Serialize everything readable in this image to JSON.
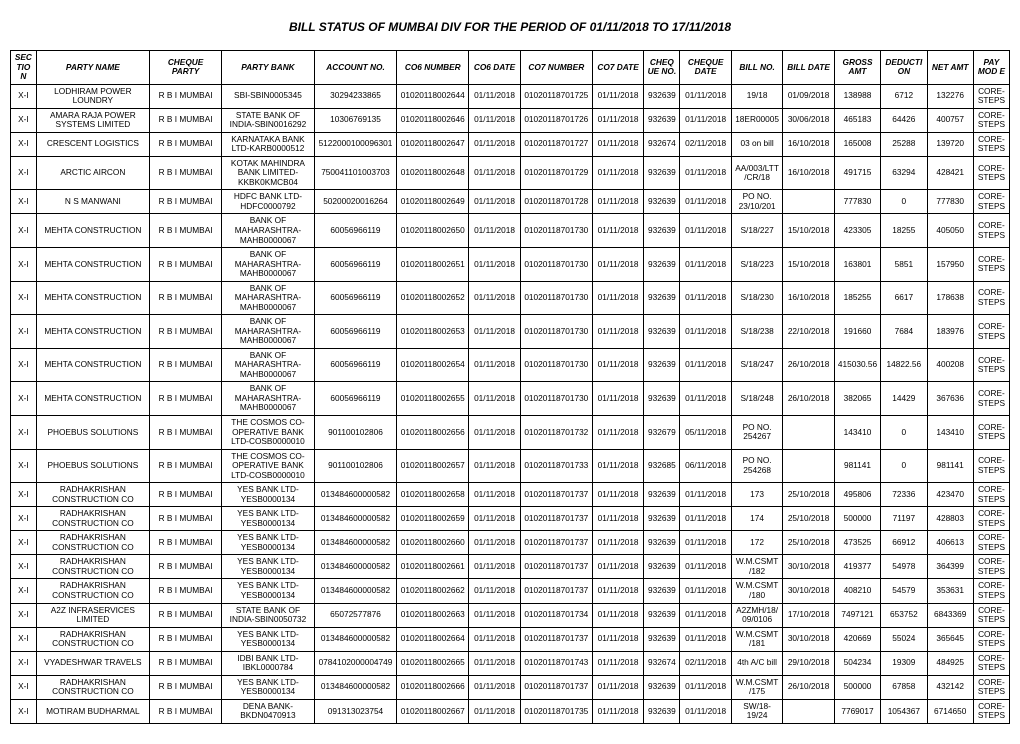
{
  "title": "BILL STATUS OF MUMBAI DIV FOR THE PERIOD OF 01/11/2018 TO 17/11/2018",
  "columns": [
    "SEC TIO N",
    "PARTY NAME",
    "CHEQUE PARTY",
    "PARTY BANK",
    "ACCOUNT NO.",
    "CO6 NUMBER",
    "CO6 DATE",
    "CO7 NUMBER",
    "CO7 DATE",
    "CHEQ UE NO.",
    "CHEQUE DATE",
    "BILL NO.",
    "BILL DATE",
    "GROSS AMT",
    "DEDUCTI ON",
    "NET AMT",
    "PAY MOD E"
  ],
  "rows": [
    [
      "X-I",
      "LODHIRAM POWER LOUNDRY",
      "R B I  MUMBAI",
      "SBI-SBIN0005345",
      "30294233865",
      "01020118002644",
      "01/11/2018",
      "01020118701725",
      "01/11/2018",
      "932639",
      "01/11/2018",
      "19/18",
      "01/09/2018",
      "138988",
      "6712",
      "132276",
      "CORE-STEPS"
    ],
    [
      "X-I",
      "AMARA RAJA POWER SYSTEMS LIMITED",
      "R B I  MUMBAI",
      "STATE BANK OF INDIA-SBIN0016292",
      "10306769135",
      "01020118002646",
      "01/11/2018",
      "01020118701726",
      "01/11/2018",
      "932639",
      "01/11/2018",
      "18ER00005",
      "30/06/2018",
      "465183",
      "64426",
      "400757",
      "CORE-STEPS"
    ],
    [
      "X-I",
      "CRESCENT LOGISTICS",
      "R B I  MUMBAI",
      "KARNATAKA BANK LTD-KARB0000512",
      "5122000100096301",
      "01020118002647",
      "01/11/2018",
      "01020118701727",
      "01/11/2018",
      "932674",
      "02/11/2018",
      "03 on bill",
      "16/10/2018",
      "165008",
      "25288",
      "139720",
      "CORE-STEPS"
    ],
    [
      "X-I",
      "ARCTIC AIRCON",
      "R B I  MUMBAI",
      "KOTAK MAHINDRA BANK LIMITED-KKBK0KMCB04",
      "750041101003703",
      "01020118002648",
      "01/11/2018",
      "01020118701729",
      "01/11/2018",
      "932639",
      "01/11/2018",
      "AA/003/LTT/CR/18",
      "16/10/2018",
      "491715",
      "63294",
      "428421",
      "CORE-STEPS"
    ],
    [
      "X-I",
      "N S MANWANI",
      "R B I  MUMBAI",
      "HDFC BANK LTD-HDFC0000792",
      "50200020016264",
      "01020118002649",
      "01/11/2018",
      "01020118701728",
      "01/11/2018",
      "932639",
      "01/11/2018",
      "PO NO. 23/10/201",
      "",
      "777830",
      "0",
      "777830",
      "CORE-STEPS"
    ],
    [
      "X-I",
      "MEHTA CONSTRUCTION",
      "R B I  MUMBAI",
      "BANK OF MAHARASHTRA-MAHB0000067",
      "60056966119",
      "01020118002650",
      "01/11/2018",
      "01020118701730",
      "01/11/2018",
      "932639",
      "01/11/2018",
      "S/18/227",
      "15/10/2018",
      "423305",
      "18255",
      "405050",
      "CORE-STEPS"
    ],
    [
      "X-I",
      "MEHTA CONSTRUCTION",
      "R B I  MUMBAI",
      "BANK OF MAHARASHTRA-MAHB0000067",
      "60056966119",
      "01020118002651",
      "01/11/2018",
      "01020118701730",
      "01/11/2018",
      "932639",
      "01/11/2018",
      "S/18/223",
      "15/10/2018",
      "163801",
      "5851",
      "157950",
      "CORE-STEPS"
    ],
    [
      "X-I",
      "MEHTA CONSTRUCTION",
      "R B I  MUMBAI",
      "BANK OF MAHARASHTRA-MAHB0000067",
      "60056966119",
      "01020118002652",
      "01/11/2018",
      "01020118701730",
      "01/11/2018",
      "932639",
      "01/11/2018",
      "S/18/230",
      "16/10/2018",
      "185255",
      "6617",
      "178638",
      "CORE-STEPS"
    ],
    [
      "X-I",
      "MEHTA CONSTRUCTION",
      "R B I  MUMBAI",
      "BANK OF MAHARASHTRA-MAHB0000067",
      "60056966119",
      "01020118002653",
      "01/11/2018",
      "01020118701730",
      "01/11/2018",
      "932639",
      "01/11/2018",
      "S/18/238",
      "22/10/2018",
      "191660",
      "7684",
      "183976",
      "CORE-STEPS"
    ],
    [
      "X-I",
      "MEHTA CONSTRUCTION",
      "R B I  MUMBAI",
      "BANK OF MAHARASHTRA-MAHB0000067",
      "60056966119",
      "01020118002654",
      "01/11/2018",
      "01020118701730",
      "01/11/2018",
      "932639",
      "01/11/2018",
      "S/18/247",
      "26/10/2018",
      "415030.56",
      "14822.56",
      "400208",
      "CORE-STEPS"
    ],
    [
      "X-I",
      "MEHTA CONSTRUCTION",
      "R B I  MUMBAI",
      "BANK OF MAHARASHTRA-MAHB0000067",
      "60056966119",
      "01020118002655",
      "01/11/2018",
      "01020118701730",
      "01/11/2018",
      "932639",
      "01/11/2018",
      "S/18/248",
      "26/10/2018",
      "382065",
      "14429",
      "367636",
      "CORE-STEPS"
    ],
    [
      "X-I",
      "PHOEBUS SOLUTIONS",
      "R B I  MUMBAI",
      "THE COSMOS CO-OPERATIVE BANK LTD-COSB0000010",
      "901100102806",
      "01020118002656",
      "01/11/2018",
      "01020118701732",
      "01/11/2018",
      "932679",
      "05/11/2018",
      "PO NO. 254267",
      "",
      "143410",
      "0",
      "143410",
      "CORE-STEPS"
    ],
    [
      "X-I",
      "PHOEBUS SOLUTIONS",
      "R B I  MUMBAI",
      "THE COSMOS CO-OPERATIVE BANK LTD-COSB0000010",
      "901100102806",
      "01020118002657",
      "01/11/2018",
      "01020118701733",
      "01/11/2018",
      "932685",
      "06/11/2018",
      "PO NO. 254268",
      "",
      "981141",
      "0",
      "981141",
      "CORE-STEPS"
    ],
    [
      "X-I",
      "RADHAKRISHAN CONSTRUCTION CO",
      "R B I  MUMBAI",
      "YES BANK LTD-YESB0000134",
      "013484600000582",
      "01020118002658",
      "01/11/2018",
      "01020118701737",
      "01/11/2018",
      "932639",
      "01/11/2018",
      "173",
      "25/10/2018",
      "495806",
      "72336",
      "423470",
      "CORE-STEPS"
    ],
    [
      "X-I",
      "RADHAKRISHAN CONSTRUCTION CO",
      "R B I  MUMBAI",
      "YES BANK LTD-YESB0000134",
      "013484600000582",
      "01020118002659",
      "01/11/2018",
      "01020118701737",
      "01/11/2018",
      "932639",
      "01/11/2018",
      "174",
      "25/10/2018",
      "500000",
      "71197",
      "428803",
      "CORE-STEPS"
    ],
    [
      "X-I",
      "RADHAKRISHAN CONSTRUCTION CO",
      "R B I  MUMBAI",
      "YES BANK LTD-YESB0000134",
      "013484600000582",
      "01020118002660",
      "01/11/2018",
      "01020118701737",
      "01/11/2018",
      "932639",
      "01/11/2018",
      "172",
      "25/10/2018",
      "473525",
      "66912",
      "406613",
      "CORE-STEPS"
    ],
    [
      "X-I",
      "RADHAKRISHAN CONSTRUCTION CO",
      "R B I  MUMBAI",
      "YES BANK LTD-YESB0000134",
      "013484600000582",
      "01020118002661",
      "01/11/2018",
      "01020118701737",
      "01/11/2018",
      "932639",
      "01/11/2018",
      "W.M.CSMT /182",
      "30/10/2018",
      "419377",
      "54978",
      "364399",
      "CORE-STEPS"
    ],
    [
      "X-I",
      "RADHAKRISHAN CONSTRUCTION CO",
      "R B I  MUMBAI",
      "YES BANK LTD-YESB0000134",
      "013484600000582",
      "01020118002662",
      "01/11/2018",
      "01020118701737",
      "01/11/2018",
      "932639",
      "01/11/2018",
      "W.M.CSMT /180",
      "30/10/2018",
      "408210",
      "54579",
      "353631",
      "CORE-STEPS"
    ],
    [
      "X-I",
      "A2Z INFRASERVICES LIMITED",
      "R B I  MUMBAI",
      "STATE BANK OF INDIA-SBIN0050732",
      "65072577876",
      "01020118002663",
      "01/11/2018",
      "01020118701734",
      "01/11/2018",
      "932639",
      "01/11/2018",
      "A2ZMH/18/09/0106",
      "17/10/2018",
      "7497121",
      "653752",
      "6843369",
      "CORE-STEPS"
    ],
    [
      "X-I",
      "RADHAKRISHAN CONSTRUCTION CO",
      "R B I  MUMBAI",
      "YES BANK LTD-YESB0000134",
      "013484600000582",
      "01020118002664",
      "01/11/2018",
      "01020118701737",
      "01/11/2018",
      "932639",
      "01/11/2018",
      "W.M.CSMT /181",
      "30/10/2018",
      "420669",
      "55024",
      "365645",
      "CORE-STEPS"
    ],
    [
      "X-I",
      "VYADESHWAR TRAVELS",
      "R B I  MUMBAI",
      "IDBI BANK LTD-IBKL0000784",
      "0784102000004749",
      "01020118002665",
      "01/11/2018",
      "01020118701743",
      "01/11/2018",
      "932674",
      "02/11/2018",
      "4th A/C bill",
      "29/10/2018",
      "504234",
      "19309",
      "484925",
      "CORE-STEPS"
    ],
    [
      "X-I",
      "RADHAKRISHAN CONSTRUCTION CO",
      "R B I  MUMBAI",
      "YES BANK LTD-YESB0000134",
      "013484600000582",
      "01020118002666",
      "01/11/2018",
      "01020118701737",
      "01/11/2018",
      "932639",
      "01/11/2018",
      "W.M.CSMT /175",
      "26/10/2018",
      "500000",
      "67858",
      "432142",
      "CORE-STEPS"
    ],
    [
      "X-I",
      "MOTIRAM BUDHARMAL",
      "R B I  MUMBAI",
      "DENA BANK-BKDN0470913",
      "091313023754",
      "01020118002667",
      "01/11/2018",
      "01020118701735",
      "01/11/2018",
      "932639",
      "01/11/2018",
      "SW/18-19/24",
      "",
      "7769017",
      "1054367",
      "6714650",
      "CORE-STEPS"
    ]
  ]
}
